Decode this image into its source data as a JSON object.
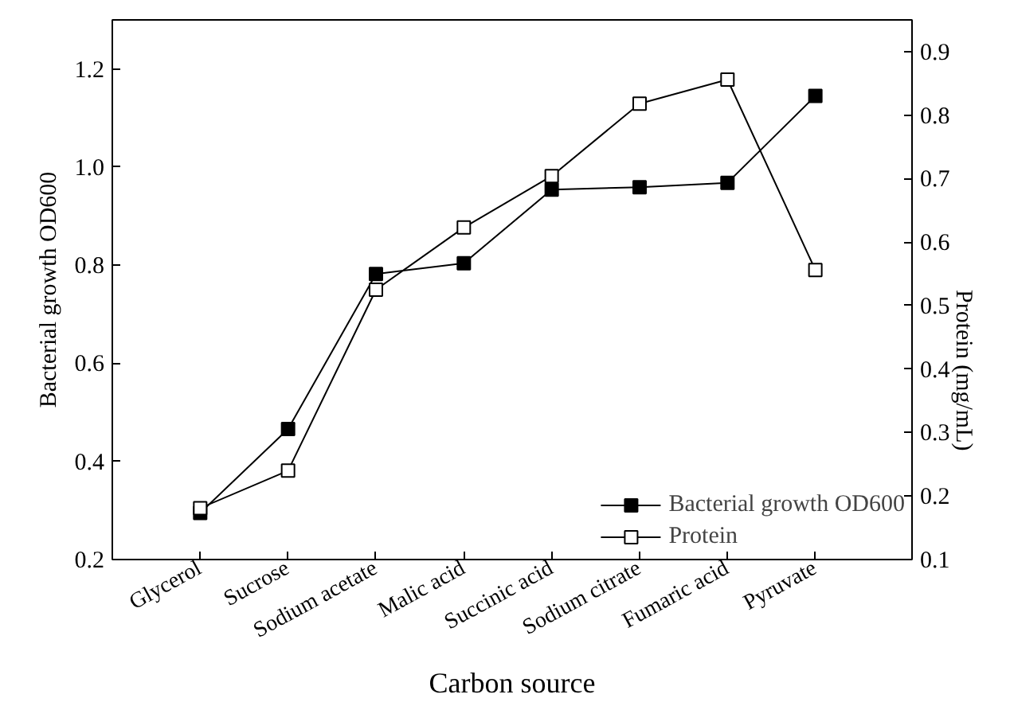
{
  "chart_data": {
    "type": "line",
    "xlabel": "Carbon source",
    "ylabel": "Bacterial growth OD600",
    "y2label": "Protein (mg/mL)",
    "categories": [
      "Glycerol",
      "Sucrose",
      "Sodium acetate",
      "Malic acid",
      "Succinic acid",
      "Sodium citrate",
      "Fumaric acid",
      "Pyruvate"
    ],
    "series": [
      {
        "name": "Bacterial growth OD600",
        "color": "#000000",
        "marker": "square",
        "values": [
          0.295,
          0.466,
          0.782,
          0.804,
          0.954,
          0.959,
          0.968,
          1.145
        ]
      },
      {
        "name": "Protein",
        "color": "#000000",
        "marker": "square",
        "axis": "y2",
        "values": [
          0.181,
          0.24,
          0.525,
          0.623,
          0.704,
          0.818,
          0.856,
          0.556
        ]
      }
    ],
    "ylim": [
      0.2,
      1.3
    ],
    "yticks": [
      0.2,
      0.4,
      0.6,
      0.8,
      {
        "value": 1.0,
        "label": "1.0"
      },
      1.2
    ],
    "y2lim": [
      0.1,
      0.95
    ],
    "y2ticks": [
      0.1,
      0.2,
      0.3,
      0.4,
      0.5,
      0.6,
      0.7,
      0.8,
      0.9
    ],
    "grid": false,
    "legend": "bottom right"
  }
}
